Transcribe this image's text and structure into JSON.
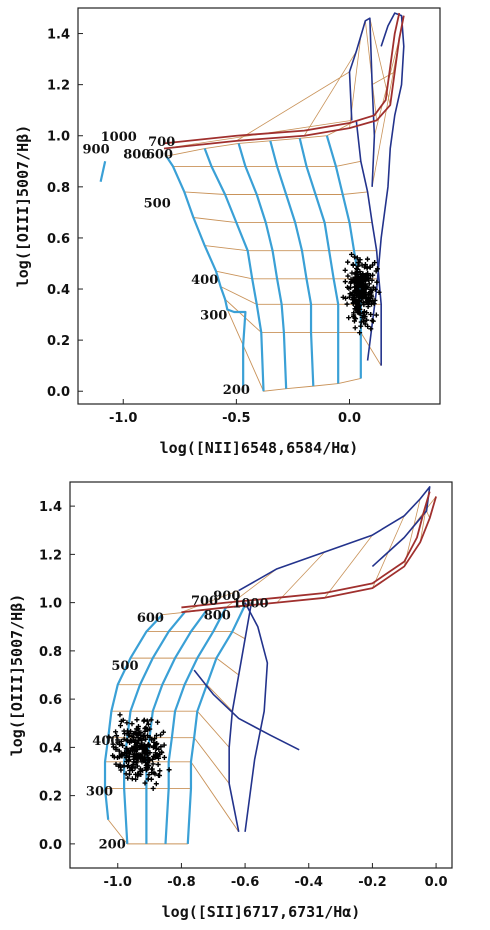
{
  "chart_data": [
    {
      "type": "scatter",
      "title": "",
      "xlabel": "log([NII]6548,6584/Hα)",
      "ylabel": "log([OIII]5007/Hβ)",
      "xlim": [
        -1.2,
        0.4
      ],
      "ylim": [
        -0.05,
        1.5
      ],
      "xticks": [
        "-1.0",
        "-0.5",
        "0.0"
      ],
      "yticks": [
        "0.0",
        "0.2",
        "0.4",
        "0.6",
        "0.8",
        "1.0",
        "1.2",
        "1.4"
      ],
      "grid": false,
      "grid_labels": [
        {
          "text": "1000",
          "x": -1.1,
          "y": 0.98
        },
        {
          "text": "900",
          "x": -1.18,
          "y": 0.93
        },
        {
          "text": "800",
          "x": -1.0,
          "y": 0.91
        },
        {
          "text": "700",
          "x": -0.89,
          "y": 0.96
        },
        {
          "text": "600",
          "x": -0.9,
          "y": 0.91
        },
        {
          "text": "500",
          "x": -0.91,
          "y": 0.72
        },
        {
          "text": "400",
          "x": -0.7,
          "y": 0.42
        },
        {
          "text": "300",
          "x": -0.66,
          "y": 0.28
        },
        {
          "text": "200",
          "x": -0.56,
          "y": -0.01
        }
      ],
      "blue_tracks": [
        {
          "x": [
            -1.1,
            -1.08
          ],
          "y": [
            0.82,
            0.9
          ]
        },
        {
          "x": [
            -0.81,
            -0.78,
            -0.73,
            -0.69,
            -0.64,
            -0.59,
            -0.57,
            -0.55,
            -0.54,
            -0.51,
            -0.46,
            -0.47,
            -0.47
          ],
          "y": [
            0.92,
            0.88,
            0.78,
            0.68,
            0.57,
            0.47,
            0.41,
            0.36,
            0.32,
            0.31,
            0.31,
            0.18,
            0.0
          ]
        },
        {
          "x": [
            -0.64,
            -0.61,
            -0.55,
            -0.5,
            -0.45,
            -0.43,
            -0.41,
            -0.39,
            -0.38
          ],
          "y": [
            0.95,
            0.88,
            0.77,
            0.66,
            0.55,
            0.44,
            0.34,
            0.23,
            0.0
          ]
        },
        {
          "x": [
            -0.49,
            -0.46,
            -0.41,
            -0.37,
            -0.34,
            -0.32,
            -0.3,
            -0.29,
            -0.28
          ],
          "y": [
            0.97,
            0.88,
            0.77,
            0.66,
            0.55,
            0.44,
            0.34,
            0.23,
            0.01
          ]
        },
        {
          "x": [
            -0.35,
            -0.32,
            -0.28,
            -0.24,
            -0.21,
            -0.19,
            -0.17,
            -0.17,
            -0.16
          ],
          "y": [
            0.98,
            0.88,
            0.77,
            0.66,
            0.55,
            0.44,
            0.34,
            0.23,
            0.02
          ]
        },
        {
          "x": [
            -0.22,
            -0.19,
            -0.15,
            -0.11,
            -0.09,
            -0.07,
            -0.05,
            -0.05,
            -0.05
          ],
          "y": [
            0.99,
            0.88,
            0.77,
            0.66,
            0.55,
            0.44,
            0.34,
            0.23,
            0.03
          ]
        },
        {
          "x": [
            -0.1,
            -0.06,
            -0.03,
            0.0,
            0.02,
            0.04,
            0.05,
            0.05,
            0.05
          ],
          "y": [
            1.0,
            0.88,
            0.77,
            0.66,
            0.55,
            0.44,
            0.34,
            0.23,
            0.05
          ]
        }
      ],
      "navy_tracks": [
        {
          "x": [
            0.01,
            0.0,
            0.03,
            0.05,
            0.07,
            0.09,
            0.1,
            0.11,
            0.1
          ],
          "y": [
            1.06,
            1.25,
            1.33,
            1.39,
            1.45,
            1.46,
            1.2,
            1.0,
            0.8
          ]
        },
        {
          "x": [
            0.03,
            0.05,
            0.08,
            0.1,
            0.12,
            0.13,
            0.14,
            0.14
          ],
          "y": [
            1.06,
            0.9,
            0.78,
            0.66,
            0.55,
            0.44,
            0.34,
            0.1
          ]
        },
        {
          "x": [
            0.14,
            0.17,
            0.2,
            0.23,
            0.24,
            0.23,
            0.2,
            0.18,
            0.17,
            0.14,
            0.12,
            0.08
          ],
          "y": [
            1.35,
            1.43,
            1.48,
            1.47,
            1.35,
            1.2,
            1.08,
            0.95,
            0.8,
            0.6,
            0.4,
            0.12
          ]
        }
      ],
      "red_tracks": [
        {
          "x": [
            -0.82,
            -0.5,
            -0.2,
            0.0,
            0.12,
            0.18,
            0.2,
            0.22,
            0.24
          ],
          "y": [
            0.95,
            0.98,
            1.0,
            1.03,
            1.06,
            1.12,
            1.25,
            1.38,
            1.47
          ]
        },
        {
          "x": [
            -0.82,
            -0.5,
            -0.2,
            0.0,
            0.11,
            0.16,
            0.18,
            0.2,
            0.22
          ],
          "y": [
            0.97,
            1.0,
            1.02,
            1.05,
            1.08,
            1.14,
            1.27,
            1.4,
            1.48
          ]
        }
      ],
      "scatter_cluster": {
        "x_center": 0.07,
        "y_center": 0.38,
        "x_range": [
          -0.04,
          0.14
        ],
        "y_range": [
          0.22,
          0.57
        ]
      }
    },
    {
      "type": "scatter",
      "title": "",
      "xlabel": "log([SII]6717,6731/Hα)",
      "ylabel": "log([OIII]5007/Hβ)",
      "xlim": [
        -1.15,
        0.05
      ],
      "ylim": [
        -0.1,
        1.5
      ],
      "xticks": [
        "-1.0",
        "-0.8",
        "-0.6",
        "-0.4",
        "-0.2",
        "0.0"
      ],
      "yticks": [
        "0.0",
        "0.2",
        "0.4",
        "0.6",
        "0.8",
        "1.0",
        "1.2",
        "1.4"
      ],
      "grid": false,
      "grid_labels": [
        {
          "text": "700",
          "x": -0.77,
          "y": 0.99
        },
        {
          "text": "900",
          "x": -0.7,
          "y": 1.01
        },
        {
          "text": "1000",
          "x": -0.64,
          "y": 0.98
        },
        {
          "text": "800",
          "x": -0.73,
          "y": 0.93
        },
        {
          "text": "600",
          "x": -0.94,
          "y": 0.92
        },
        {
          "text": "500",
          "x": -1.02,
          "y": 0.72
        },
        {
          "text": "400",
          "x": -1.08,
          "y": 0.41
        },
        {
          "text": "300",
          "x": -1.1,
          "y": 0.2
        },
        {
          "text": "200",
          "x": -1.06,
          "y": -0.02
        }
      ],
      "blue_tracks": [
        {
          "x": [
            -0.86,
            -0.91,
            -0.96,
            -1.0,
            -1.02,
            -1.03,
            -1.04,
            -1.04,
            -1.03
          ],
          "y": [
            0.95,
            0.88,
            0.77,
            0.66,
            0.55,
            0.44,
            0.34,
            0.23,
            0.1
          ]
        },
        {
          "x": [
            -0.79,
            -0.84,
            -0.89,
            -0.93,
            -0.96,
            -0.97,
            -0.98,
            -0.98,
            -0.97
          ],
          "y": [
            0.96,
            0.88,
            0.77,
            0.66,
            0.55,
            0.44,
            0.34,
            0.23,
            0.0
          ]
        },
        {
          "x": [
            -0.72,
            -0.77,
            -0.82,
            -0.86,
            -0.89,
            -0.9,
            -0.91,
            -0.91,
            -0.91
          ],
          "y": [
            0.97,
            0.88,
            0.77,
            0.66,
            0.55,
            0.44,
            0.34,
            0.23,
            0.0
          ]
        },
        {
          "x": [
            -0.66,
            -0.7,
            -0.75,
            -0.79,
            -0.82,
            -0.83,
            -0.84,
            -0.84,
            -0.85
          ],
          "y": [
            0.98,
            0.88,
            0.77,
            0.66,
            0.55,
            0.44,
            0.34,
            0.23,
            0.0
          ]
        },
        {
          "x": [
            -0.6,
            -0.64,
            -0.69,
            -0.72,
            -0.75,
            -0.76,
            -0.77,
            -0.77,
            -0.78
          ],
          "y": [
            0.99,
            0.88,
            0.77,
            0.66,
            0.55,
            0.44,
            0.34,
            0.23,
            0.0
          ]
        }
      ],
      "navy_tracks": [
        {
          "x": [
            -0.62,
            -0.5,
            -0.35,
            -0.2,
            -0.1,
            -0.05,
            -0.02,
            -0.03,
            -0.1,
            -0.2
          ],
          "y": [
            1.05,
            1.14,
            1.21,
            1.28,
            1.36,
            1.43,
            1.48,
            1.38,
            1.27,
            1.15
          ]
        },
        {
          "x": [
            -0.58,
            -0.6,
            -0.62,
            -0.64,
            -0.65,
            -0.65,
            -0.62
          ],
          "y": [
            1.0,
            0.85,
            0.7,
            0.55,
            0.4,
            0.25,
            0.05
          ]
        },
        {
          "x": [
            -0.6,
            -0.56,
            -0.53,
            -0.54,
            -0.57,
            -0.6
          ],
          "y": [
            1.0,
            0.9,
            0.75,
            0.55,
            0.35,
            0.05
          ]
        },
        {
          "x": [
            -0.76,
            -0.7,
            -0.62,
            -0.52,
            -0.43
          ],
          "y": [
            0.72,
            0.62,
            0.52,
            0.45,
            0.39
          ]
        }
      ],
      "red_tracks": [
        {
          "x": [
            -0.8,
            -0.66,
            -0.5,
            -0.35,
            -0.2,
            -0.1,
            -0.05,
            -0.02,
            0.0
          ],
          "y": [
            0.96,
            0.98,
            1.0,
            1.02,
            1.06,
            1.15,
            1.25,
            1.35,
            1.44
          ]
        },
        {
          "x": [
            -0.8,
            -0.66,
            -0.5,
            -0.35,
            -0.2,
            -0.1,
            -0.06,
            -0.04,
            -0.02
          ],
          "y": [
            0.98,
            1.0,
            1.02,
            1.04,
            1.08,
            1.17,
            1.27,
            1.37,
            1.46
          ]
        }
      ],
      "scatter_cluster": {
        "x_center": -0.94,
        "y_center": 0.36,
        "x_range": [
          -1.05,
          -0.82
        ],
        "y_range": [
          0.2,
          0.56
        ]
      }
    }
  ],
  "colors": {
    "blue": "#3aa0d6",
    "navy": "#23338c",
    "red": "#a0302e",
    "tan": "#c9935a",
    "points": "#000000"
  }
}
